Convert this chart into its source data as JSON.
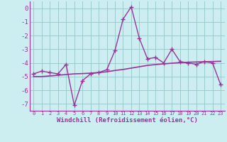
{
  "xlabel": "Windchill (Refroidissement éolien,°C)",
  "bg_color": "#cceef0",
  "grid_color": "#99cccc",
  "line_color": "#993399",
  "x": [
    0,
    1,
    2,
    3,
    4,
    5,
    6,
    7,
    8,
    9,
    10,
    11,
    12,
    13,
    14,
    15,
    16,
    17,
    18,
    19,
    20,
    21,
    22,
    23
  ],
  "y_main": [
    -4.8,
    -4.6,
    -4.7,
    -4.8,
    -4.1,
    -7.1,
    -5.3,
    -4.8,
    -4.7,
    -4.5,
    -3.1,
    -0.8,
    0.1,
    -2.2,
    -3.7,
    -3.6,
    -4.0,
    -3.0,
    -3.9,
    -4.0,
    -4.1,
    -3.9,
    -4.0,
    -5.6
  ],
  "y_trend": [
    -5.0,
    -5.0,
    -4.95,
    -4.9,
    -4.85,
    -4.8,
    -4.78,
    -4.75,
    -4.7,
    -4.65,
    -4.55,
    -4.48,
    -4.38,
    -4.28,
    -4.18,
    -4.12,
    -4.07,
    -4.02,
    -3.98,
    -3.95,
    -3.93,
    -3.91,
    -3.9,
    -3.88
  ],
  "ylim": [
    -7.5,
    0.5
  ],
  "yticks": [
    0,
    -1,
    -2,
    -3,
    -4,
    -5,
    -6,
    -7
  ],
  "xlim": [
    -0.5,
    23.5
  ],
  "tick_color": "#993399",
  "xlabel_color": "#993399"
}
